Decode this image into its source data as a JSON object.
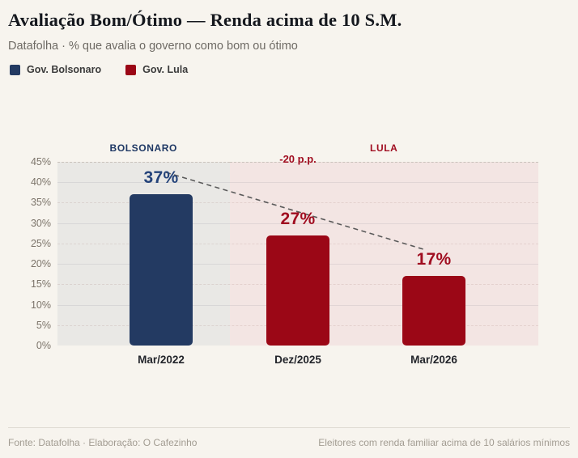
{
  "header": {
    "title": "Avaliação Bom/Ótimo — Renda acima de 10 S.M.",
    "subtitle": "Datafolha · % que avalia o governo como bom ou ótimo"
  },
  "legend": [
    {
      "label": "Gov. Bolsonaro",
      "color": "#233a62"
    },
    {
      "label": "Gov. Lula",
      "color": "#9b0716"
    }
  ],
  "chart_data": {
    "type": "bar",
    "title": "Avaliação Bom/Ótimo — Renda acima de 10 S.M.",
    "subtitle": "Datafolha · % que avalia o governo como bom ou ótimo",
    "categories": [
      "Mar/2022",
      "Dez/2025",
      "Mar/2026"
    ],
    "series": [
      {
        "name": "Gov. Bolsonaro",
        "color": "#233a62",
        "values": [
          37,
          null,
          null
        ]
      },
      {
        "name": "Gov. Lula",
        "color": "#9b0716",
        "values": [
          null,
          27,
          17
        ]
      }
    ],
    "bars": [
      {
        "category": "Mar/2022",
        "value": 37,
        "label": "37%",
        "series": "Gov. Bolsonaro",
        "color": "#233a62",
        "label_color": "#24437a"
      },
      {
        "category": "Dez/2025",
        "value": 27,
        "label": "27%",
        "series": "Gov. Lula",
        "color": "#9b0716",
        "label_color": "#a00d20"
      },
      {
        "category": "Mar/2026",
        "value": 17,
        "label": "17%",
        "series": "Gov. Lula",
        "color": "#9b0716",
        "label_color": "#a00d20"
      }
    ],
    "ylim": [
      0,
      45
    ],
    "yticks": [
      45,
      40,
      35,
      30,
      25,
      20,
      15,
      10,
      5,
      0
    ],
    "ytick_suffix": "%",
    "grid": true,
    "legend_position": "top-left",
    "regions": [
      {
        "label": "BOLSONARO",
        "label_color": "#1f3864",
        "bg": "#e9e8e5",
        "categories": [
          "Mar/2022"
        ]
      },
      {
        "label": "LULA",
        "label_color": "#a00d20",
        "bg": "#f3e5e3",
        "categories": [
          "Dez/2025",
          "Mar/2026"
        ]
      }
    ],
    "annotation": {
      "text": "-20 p.p.",
      "color": "#a00d20"
    },
    "trend_line": {
      "style": "dashed",
      "color": "#5a5a5a",
      "from_value": 37,
      "to_value": 17
    }
  },
  "footer": {
    "left": "Fonte: Datafolha · Elaboração: O Cafezinho",
    "right": "Eleitores com renda familiar acima de 10 salários mínimos"
  }
}
